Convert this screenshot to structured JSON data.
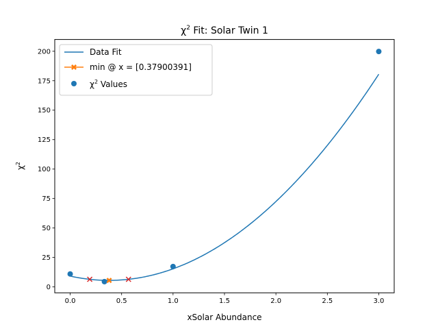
{
  "chart_data": {
    "type": "line",
    "title_prefix": "χ",
    "title_sup": "2",
    "title_suffix": " Fit: Solar Twin 1",
    "xlabel": "xSolar Abundance",
    "ylabel_base": "χ",
    "ylabel_sup": "2",
    "xlim": [
      -0.15,
      3.15
    ],
    "ylim": [
      -5,
      210
    ],
    "xticks": [
      0.0,
      0.5,
      1.0,
      1.5,
      2.0,
      2.5,
      3.0
    ],
    "xtick_labels": [
      "0.0",
      "0.5",
      "1.0",
      "1.5",
      "2.0",
      "2.5",
      "3.0"
    ],
    "yticks": [
      0,
      25,
      50,
      75,
      100,
      125,
      150,
      175,
      200
    ],
    "ytick_labels": [
      "0",
      "25",
      "50",
      "75",
      "100",
      "125",
      "150",
      "175",
      "200"
    ],
    "grid": false,
    "legend_position": "top-left",
    "colors": {
      "fit": "#1f77b4",
      "min": "#ff7f0e",
      "bounds": "#d62728",
      "points": "#1f77b4"
    },
    "series": [
      {
        "name": "Data Fit",
        "kind": "curve",
        "quadratic": {
          "a": 25.47,
          "b": -19.3,
          "c": 9.2
        },
        "x_range": [
          0.0,
          3.0
        ]
      },
      {
        "name": "min @ x = [0.37900391]",
        "kind": "marker",
        "x": [
          0.379
        ],
        "y": [
          5.54
        ]
      },
      {
        "name": "χ² Values",
        "name_base": "χ",
        "name_sup": "2",
        "name_suffix": " Values",
        "kind": "scatter",
        "x": [
          0.0,
          0.333,
          1.0,
          3.0
        ],
        "y": [
          11.0,
          4.5,
          17.3,
          199.8
        ]
      },
      {
        "kind": "bounds",
        "x": [
          0.19,
          0.567
        ],
        "y": [
          6.45,
          6.45
        ]
      }
    ]
  }
}
